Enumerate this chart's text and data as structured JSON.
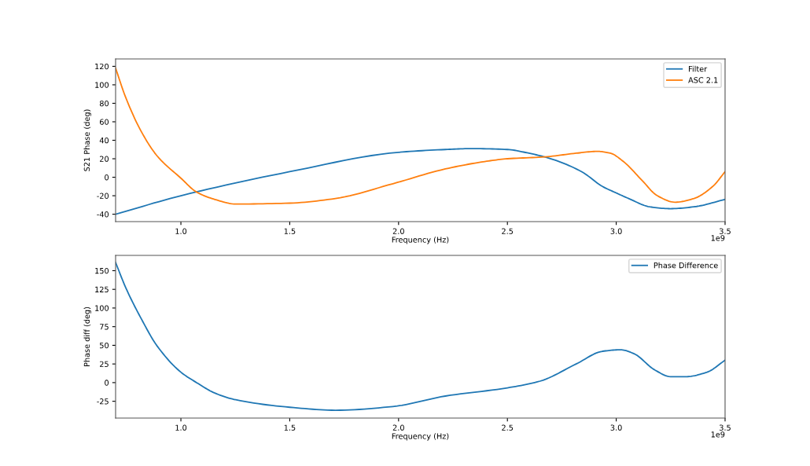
{
  "chart_data": [
    {
      "type": "line",
      "xlabel": "Frequency (Hz)",
      "ylabel": "S21 Phase (deg)",
      "annotations": [
        "1e9"
      ],
      "xlim": [
        0.7,
        3.5
      ],
      "xticks": [
        {
          "value": 1,
          "label": "1.0"
        },
        1.5,
        {
          "value": 2,
          "label": "2.0"
        },
        2.5,
        {
          "value": 3,
          "label": "3.0"
        },
        3.5
      ],
      "ylim": [
        -48,
        128
      ],
      "yticks": [
        -40,
        -20,
        0,
        20,
        40,
        60,
        80,
        100,
        120
      ],
      "grid": false,
      "legend": "top right",
      "series": [
        {
          "name": "Filter",
          "color": "#1f77b4",
          "x": [
            0.7,
            1.0,
            1.5,
            2.0,
            2.215,
            2.335,
            2.5,
            2.599,
            2.7,
            2.841,
            2.937,
            3.0,
            3.057,
            3.154,
            3.249,
            3.357,
            3.5
          ],
          "values": [
            -40,
            -20,
            6,
            27,
            30,
            31,
            30,
            26,
            20,
            6,
            -10,
            -17,
            -23,
            -32,
            -34,
            -32,
            -24
          ]
        },
        {
          "name": "ASC 2.1",
          "color": "#ff7f0e",
          "x": [
            0.7,
            0.747,
            0.819,
            0.891,
            1.0,
            1.072,
            1.156,
            1.252,
            1.5,
            1.71,
            1.974,
            2.215,
            2.396,
            2.5,
            2.672,
            2.816,
            2.913,
            2.973,
            3.033,
            3.117,
            3.189,
            3.27,
            3.357,
            3.443,
            3.5
          ],
          "values": [
            118,
            86,
            49,
            23,
            -1,
            -16,
            -24,
            -29,
            -28,
            -23,
            -7,
            9,
            17,
            20,
            22,
            26,
            28,
            26,
            17,
            -3,
            -20,
            -27,
            -23,
            -10,
            6
          ]
        }
      ]
    },
    {
      "type": "line",
      "xlabel": "Frequency (Hz)",
      "ylabel": "Phase diff (deg)",
      "annotations": [
        "1e9"
      ],
      "xlim": [
        0.7,
        3.5
      ],
      "xticks": [
        {
          "value": 1,
          "label": "1.0"
        },
        1.5,
        {
          "value": 2,
          "label": "2.0"
        },
        2.5,
        {
          "value": 3,
          "label": "3.0"
        },
        3.5
      ],
      "ylim": [
        -47.5,
        170.5
      ],
      "yticks": [
        -25,
        0,
        25,
        50,
        75,
        100,
        125,
        150
      ],
      "grid": false,
      "legend": "top right",
      "series": [
        {
          "name": "Phase Difference",
          "color": "#1f77b4",
          "x": [
            0.7,
            0.747,
            0.819,
            0.891,
            1.0,
            1.072,
            1.156,
            1.252,
            1.5,
            1.71,
            1.974,
            2.215,
            2.5,
            2.65,
            2.816,
            2.937,
            3.02,
            3.08,
            3.177,
            3.249,
            3.32,
            3.417,
            3.5
          ],
          "values": [
            161,
            127,
            85,
            49,
            14,
            0,
            -14,
            -23,
            -33,
            -37,
            -32,
            -18,
            -7,
            2,
            25,
            42,
            44,
            39,
            17,
            8,
            8,
            14,
            30
          ]
        }
      ]
    }
  ]
}
